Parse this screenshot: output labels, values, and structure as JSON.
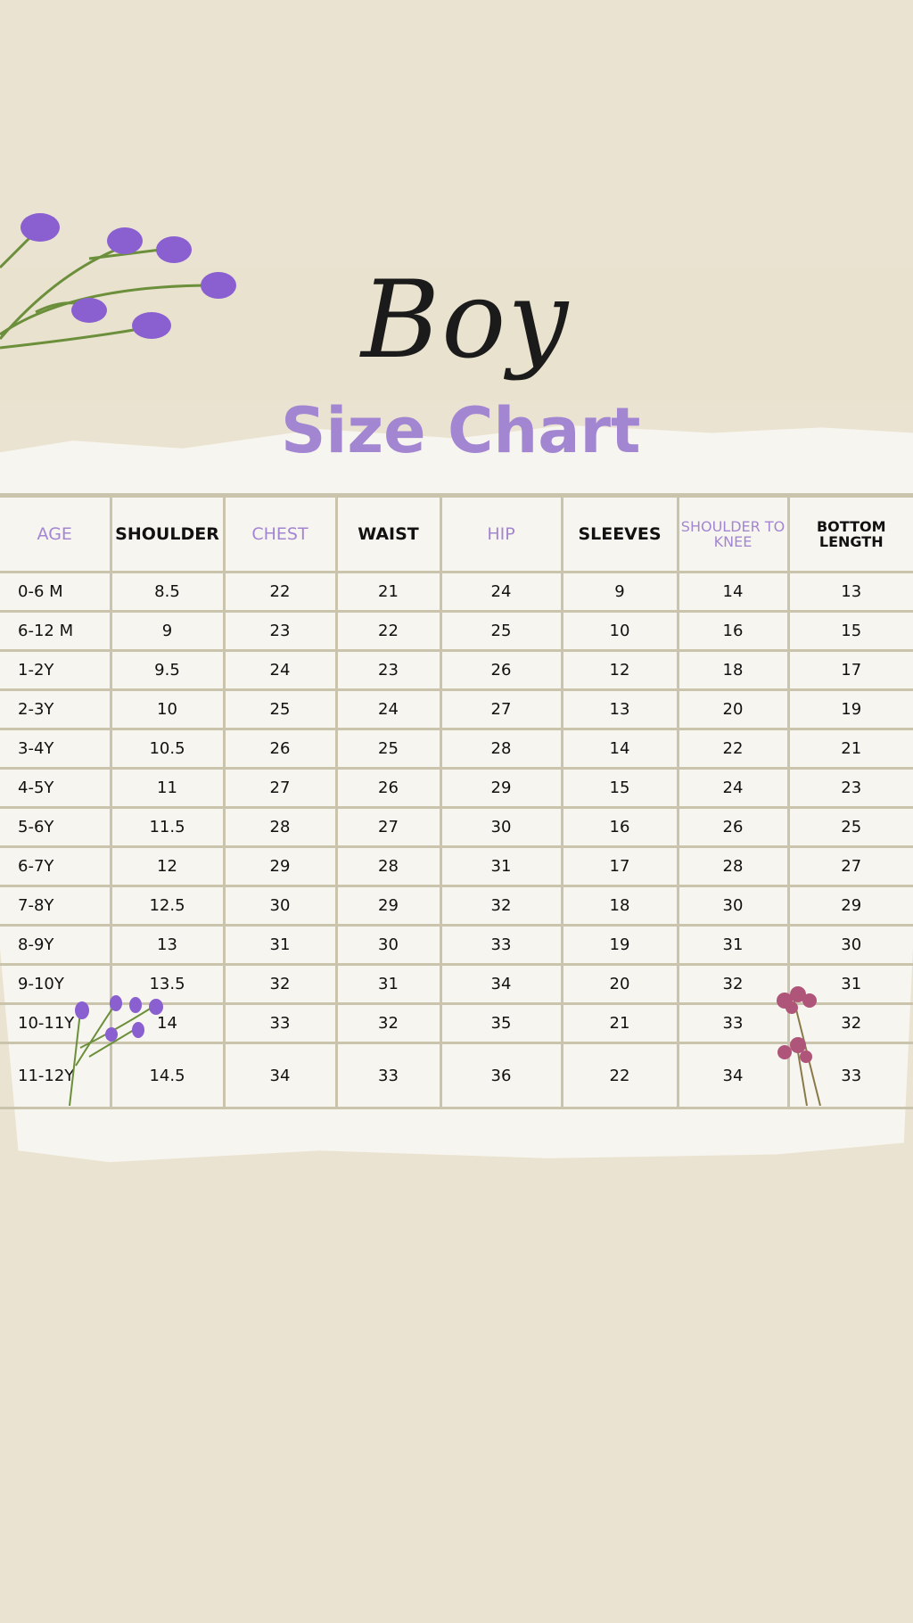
{
  "title": {
    "script": "Boy",
    "main": "Size Chart"
  },
  "colors": {
    "accent": "#a386d2",
    "background": "#ebe3d1",
    "grid": "#cbc4ac"
  },
  "table": {
    "headers": [
      "AGE",
      "SHOULDER",
      "CHEST",
      "WAIST",
      "HIP",
      "SLEEVES",
      "SHOULDER TO KNEE",
      "BOTTOM LENGTH"
    ],
    "rows": [
      [
        "0-6 M",
        "8.5",
        "22",
        "21",
        "24",
        "9",
        "14",
        "13"
      ],
      [
        "6-12 M",
        "9",
        "23",
        "22",
        "25",
        "10",
        "16",
        "15"
      ],
      [
        "1-2Y",
        "9.5",
        "24",
        "23",
        "26",
        "12",
        "18",
        "17"
      ],
      [
        "2-3Y",
        "10",
        "25",
        "24",
        "27",
        "13",
        "20",
        "19"
      ],
      [
        "3-4Y",
        "10.5",
        "26",
        "25",
        "28",
        "14",
        "22",
        "21"
      ],
      [
        "4-5Y",
        "11",
        "27",
        "26",
        "29",
        "15",
        "24",
        "23"
      ],
      [
        "5-6Y",
        "11.5",
        "28",
        "27",
        "30",
        "16",
        "26",
        "25"
      ],
      [
        "6-7Y",
        "12",
        "29",
        "28",
        "31",
        "17",
        "28",
        "27"
      ],
      [
        "7-8Y",
        "12.5",
        "30",
        "29",
        "32",
        "18",
        "30",
        "29"
      ],
      [
        "8-9Y",
        "13",
        "31",
        "30",
        "33",
        "19",
        "31",
        "30"
      ],
      [
        "9-10Y",
        "13.5",
        "32",
        "31",
        "34",
        "20",
        "32",
        "31"
      ],
      [
        "10-11Y",
        "14",
        "33",
        "32",
        "35",
        "21",
        "33",
        "32"
      ],
      [
        "11-12Y",
        "14.5",
        "34",
        "33",
        "36",
        "22",
        "34",
        "33"
      ]
    ]
  }
}
